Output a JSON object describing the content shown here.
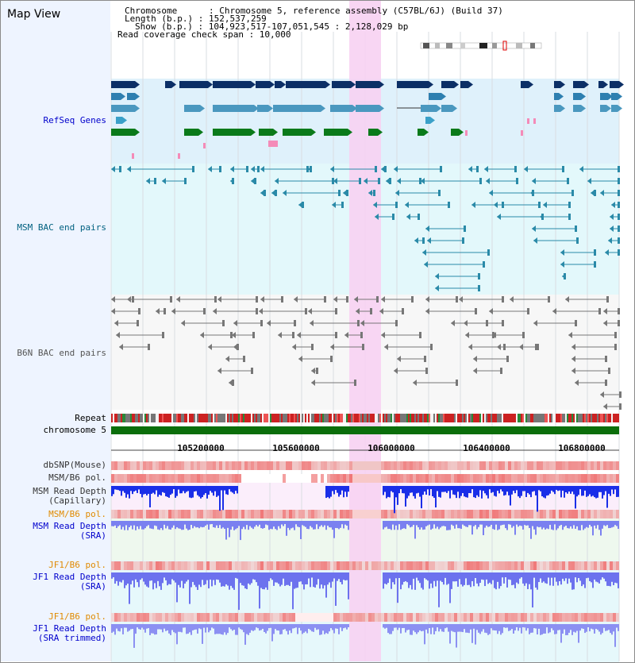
{
  "title": "Map View",
  "info": {
    "chromosome": "Chromosome      : Chromosome 5, reference assembly (C57BL/6J) (Build 37)",
    "length": "Length (b.p.) : 152,537,259",
    "show": "Show (b.p.) : 104,923,517-107,051,545 : 2,128,029 bp",
    "span": "Read coverage check span : 10,000"
  },
  "tracks": {
    "refseq": "RefSeq Genes",
    "msm_bac": "MSM BAC end pairs",
    "b6n_bac": "B6N BAC end pairs",
    "repeat": "Repeat",
    "chromosome": "chromosome 5",
    "dbsnp": "dbSNP(Mouse)",
    "msm_b6_pol": "MSM/B6 pol.",
    "msm_depth_cap_1": "MSM Read Depth",
    "msm_depth_cap_2": "(Capillary)",
    "msm_b6_pol2": "MSM/B6 pol.",
    "msm_depth_sra_1": "MSM Read Depth",
    "msm_depth_sra_2": "(SRA)",
    "jf1_b6_pol": "JF1/B6 pol.",
    "jf1_depth_sra_1": "JF1 Read Depth",
    "jf1_depth_sra_2": "(SRA)",
    "jf1_b6_pol2": "JF1/B6 pol.",
    "jf1_depth_trim_1": "JF1 Read Depth",
    "jf1_depth_trim_2": "(SRA trimmed)"
  },
  "axis": {
    "ticks": [
      "105200000",
      "105600000",
      "106000000",
      "106400000",
      "106800000"
    ]
  },
  "colors": {
    "highlight": "#f7d2f2",
    "refseq_bg": "#dff1fb",
    "msm_bg": "#e3f8fb",
    "b6n_bg": "#f7f7f7",
    "chrom": "#0b6e0b"
  }
}
